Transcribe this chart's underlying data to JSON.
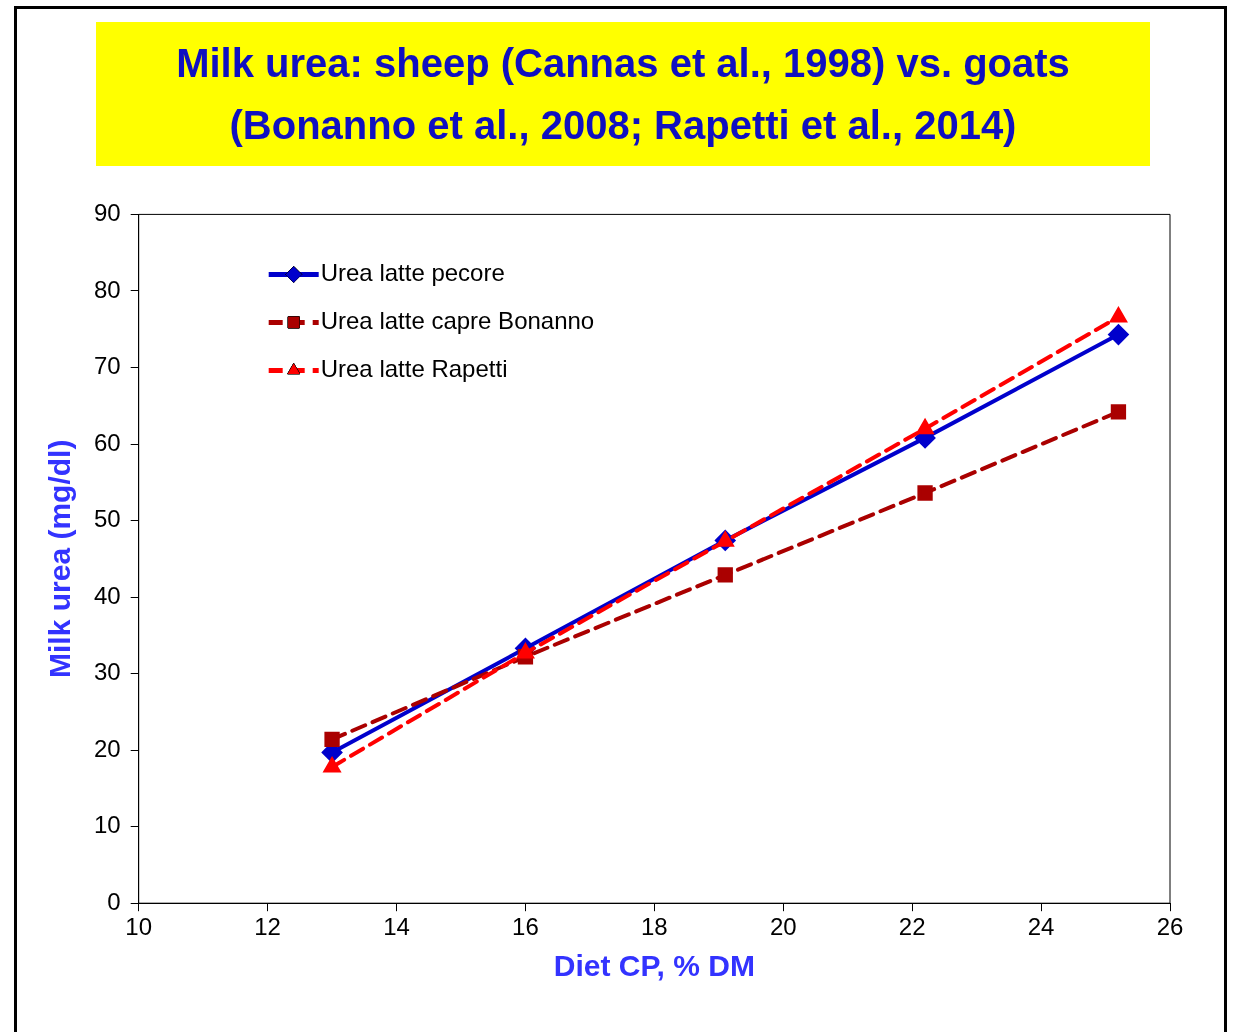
{
  "chart_data": {
    "type": "line",
    "title": "Milk urea: sheep (Cannas et al., 1998)  vs. goats (Bonanno et al., 2008; Rapetti et al., 2014)",
    "xlabel": "Diet CP, % DM",
    "ylabel": "Milk urea (mg/dl)",
    "x": [
      13,
      16,
      19.1,
      22.2,
      25.2
    ],
    "series": [
      {
        "name": "Urea latte pecore",
        "color": "#0000cc",
        "marker": "diamond",
        "line_style": "solid",
        "values": [
          19.7,
          33.3,
          47.4,
          60.8,
          74.3
        ]
      },
      {
        "name": "Urea latte capre Bonanno",
        "color": "#aa0000",
        "marker": "square",
        "line_style": "dashed",
        "values": [
          21.4,
          32.2,
          42.9,
          53.6,
          64.2
        ]
      },
      {
        "name": "Urea latte Rapetti",
        "color": "#ff0000",
        "marker": "triangle",
        "line_style": "dashed",
        "values": [
          17.8,
          32.7,
          47.3,
          62.0,
          76.6
        ]
      }
    ],
    "xlim": [
      10,
      26
    ],
    "xticks": [
      10,
      12,
      14,
      16,
      18,
      20,
      22,
      24,
      26
    ],
    "ylim": [
      0,
      90
    ],
    "yticks": [
      0,
      10,
      20,
      30,
      40,
      50,
      60,
      70,
      80,
      90
    ],
    "grid": false,
    "legend": "top left"
  }
}
